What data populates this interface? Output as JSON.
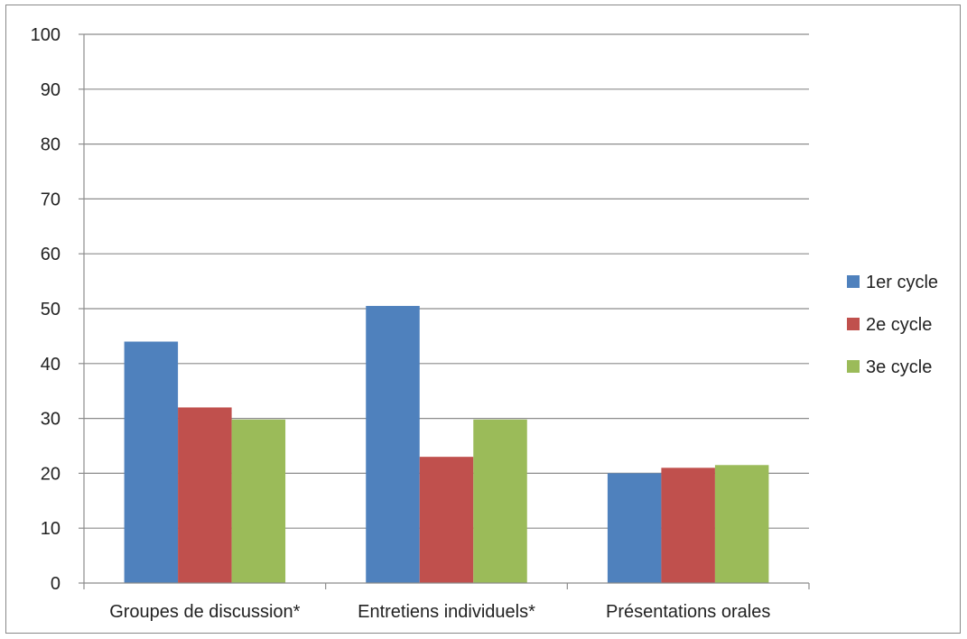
{
  "chart_data": {
    "type": "bar",
    "categories": [
      "Groupes de discussion*",
      "Entretiens individuels*",
      "Présentations orales"
    ],
    "series": [
      {
        "name": "1er cycle",
        "color": "#4F81BD",
        "values": [
          44,
          50.5,
          20
        ]
      },
      {
        "name": "2e cycle",
        "color": "#C0504D",
        "values": [
          32,
          23,
          21
        ]
      },
      {
        "name": "3e cycle",
        "color": "#9BBB59",
        "values": [
          29.8,
          29.8,
          21.5
        ]
      }
    ],
    "ylim": [
      0,
      100
    ],
    "yticks": [
      0,
      10,
      20,
      30,
      40,
      50,
      60,
      70,
      80,
      90,
      100
    ],
    "grid": true,
    "legend_position": "right"
  }
}
